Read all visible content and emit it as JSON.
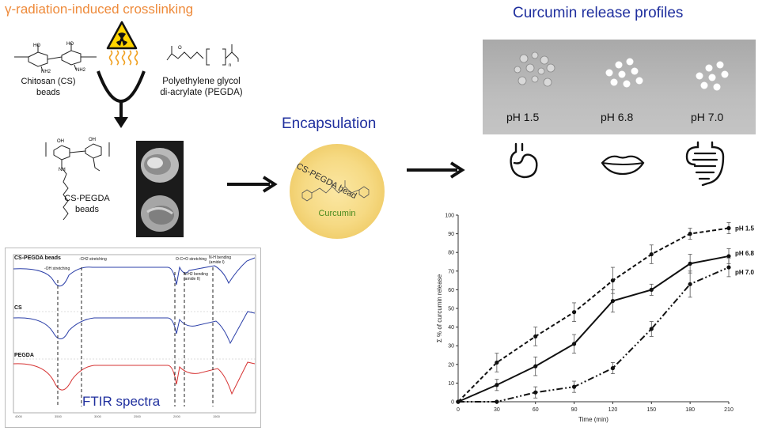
{
  "titles": {
    "crosslinking": "γ-radiation-induced crosslinking",
    "release": "Curcumin release profiles",
    "encapsulation": "Encapsulation",
    "ftir": "FTIR spectra"
  },
  "labels": {
    "chitosan": "Chitosan (CS) beads",
    "chitosan_line1": "Chitosan (CS)",
    "chitosan_line2": "beads",
    "pegda_line1": "Polyethylene glycol",
    "pegda_line2": "di-acrylate (PEGDA)",
    "cs_pegda_line1": "CS-PEGDA",
    "cs_pegda_line2": "beads"
  },
  "bead": {
    "top_label": "CS-PEGDA bead",
    "cargo": "Curcumin"
  },
  "photo_ph_labels": [
    "pH 1.5",
    "pH 6.8",
    "pH 7.0"
  ],
  "icons": [
    "radiation-hazard-icon",
    "stomach-icon",
    "lips-icon",
    "intestine-icon"
  ],
  "ftir": {
    "panels": [
      "CS-PEGDA beads",
      "CS",
      "PEGDA"
    ],
    "annotations": [
      "-OH stretching",
      "-CH2 stretching",
      "O-C=O stretching",
      "N-H2 bending (amide II)",
      "N-H bending (amide I)"
    ]
  },
  "chart_data": {
    "type": "line",
    "xlabel": "Time (min)",
    "ylabel": "Σ % of curcumin release",
    "xlim": [
      0,
      210
    ],
    "ylim": [
      0,
      100
    ],
    "xticks": [
      0,
      30,
      60,
      90,
      120,
      150,
      180,
      210
    ],
    "yticks": [
      0,
      10,
      20,
      30,
      40,
      50,
      60,
      70,
      80,
      90,
      100
    ],
    "series": [
      {
        "name": "pH 1.5",
        "style": "dashed",
        "x": [
          0,
          30,
          60,
          90,
          120,
          150,
          180,
          210
        ],
        "y": [
          0,
          21,
          35,
          48,
          65,
          79,
          90,
          93
        ],
        "err": [
          0,
          5,
          5,
          5,
          7,
          5,
          3,
          3
        ]
      },
      {
        "name": "pH 6.8",
        "style": "solid",
        "x": [
          0,
          30,
          60,
          90,
          120,
          150,
          180,
          210
        ],
        "y": [
          0,
          9,
          19,
          31,
          54,
          60,
          74,
          78
        ],
        "err": [
          0,
          3,
          5,
          5,
          6,
          3,
          5,
          4
        ]
      },
      {
        "name": "pH 7.0",
        "style": "dashdot",
        "x": [
          0,
          30,
          60,
          90,
          120,
          150,
          180,
          210
        ],
        "y": [
          0,
          0,
          5,
          8,
          18,
          39,
          63,
          72
        ],
        "err": [
          0,
          0,
          3,
          3,
          3,
          4,
          7,
          5
        ]
      }
    ]
  }
}
